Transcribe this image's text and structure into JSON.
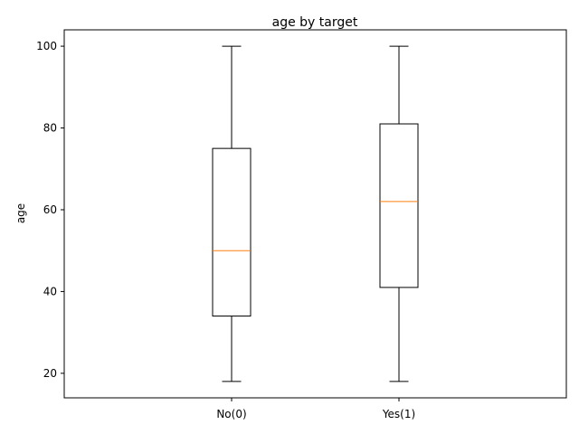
{
  "chart_data": {
    "type": "box",
    "title": "age by target",
    "xlabel": "",
    "ylabel": "age",
    "categories": [
      "No(0)",
      "Yes(1)"
    ],
    "boxes": [
      {
        "category": "No(0)",
        "whisker_low": 18,
        "q1": 34,
        "median": 50,
        "q3": 75,
        "whisker_high": 100
      },
      {
        "category": "Yes(1)",
        "whisker_low": 18,
        "q1": 41,
        "median": 62,
        "q3": 81,
        "whisker_high": 100
      }
    ],
    "ylim": [
      14,
      104
    ],
    "yticks": [
      20,
      40,
      60,
      80,
      100
    ],
    "grid": false,
    "colors": {
      "box": "#000000",
      "median": "#ff7f0e"
    }
  }
}
